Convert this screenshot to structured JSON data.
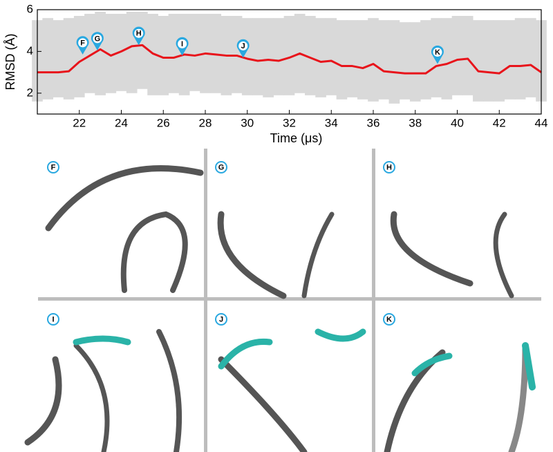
{
  "chart_data": {
    "type": "line",
    "ylabel": "RMSD (Å)",
    "xlabel": "Time (μs)",
    "xlim": [
      20,
      44
    ],
    "ylim": [
      1,
      6
    ],
    "xticks": [
      22,
      24,
      26,
      28,
      30,
      32,
      34,
      36,
      38,
      40,
      42,
      44
    ],
    "yticks": [
      2,
      4,
      6
    ],
    "x": [
      20,
      20.5,
      21,
      21.5,
      22,
      22.5,
      23,
      23.5,
      24,
      24.5,
      25,
      25.5,
      26,
      26.5,
      27,
      27.5,
      28,
      28.5,
      29,
      29.5,
      30,
      30.5,
      31,
      31.5,
      32,
      32.5,
      33,
      33.5,
      34,
      34.5,
      35,
      35.5,
      36,
      36.5,
      37,
      37.5,
      38,
      38.5,
      39,
      39.5,
      40,
      40.5,
      41,
      41.5,
      42,
      42.5,
      43,
      43.5,
      44
    ],
    "values": [
      3.0,
      3.0,
      3.0,
      3.05,
      3.5,
      3.8,
      4.1,
      3.8,
      4.0,
      4.25,
      4.3,
      3.9,
      3.7,
      3.7,
      3.85,
      3.8,
      3.9,
      3.85,
      3.8,
      3.8,
      3.65,
      3.55,
      3.6,
      3.55,
      3.7,
      3.9,
      3.7,
      3.5,
      3.55,
      3.3,
      3.3,
      3.2,
      3.4,
      3.05,
      3.0,
      2.95,
      2.95,
      2.95,
      3.3,
      3.4,
      3.6,
      3.65,
      3.05,
      3.0,
      2.95,
      3.3,
      3.3,
      3.35,
      3.0
    ],
    "color": "#e8141b",
    "band": {
      "color": "#d9d9d9",
      "low": [
        1.6,
        1.7,
        1.8,
        1.7,
        1.8,
        2.0,
        1.9,
        2.0,
        2.1,
        2.0,
        2.2,
        1.9,
        1.9,
        2.0,
        1.9,
        2.1,
        2.0,
        2.0,
        1.9,
        2.0,
        1.9,
        1.9,
        1.8,
        1.9,
        1.9,
        2.0,
        1.9,
        1.8,
        1.9,
        1.7,
        1.8,
        1.7,
        1.6,
        1.7,
        1.5,
        1.7,
        1.6,
        1.7,
        1.8,
        1.7,
        1.9,
        1.9,
        1.6,
        1.6,
        1.6,
        1.7,
        1.7,
        1.8,
        1.6
      ],
      "high": [
        5.5,
        5.6,
        5.5,
        5.6,
        5.7,
        5.8,
        5.9,
        5.8,
        5.8,
        5.9,
        5.9,
        5.8,
        5.7,
        5.8,
        5.8,
        5.8,
        5.8,
        5.8,
        5.7,
        5.7,
        5.6,
        5.6,
        5.6,
        5.6,
        5.7,
        5.8,
        5.7,
        5.6,
        5.6,
        5.5,
        5.5,
        5.5,
        5.6,
        5.5,
        5.5,
        5.4,
        5.4,
        5.5,
        5.6,
        5.6,
        5.7,
        5.7,
        5.5,
        5.5,
        5.5,
        5.5,
        5.6,
        5.6,
        5.5
      ]
    },
    "annotations": [
      {
        "label": "F",
        "x": 22.16,
        "y": 3.85
      },
      {
        "label": "G",
        "x": 22.86,
        "y": 4.05
      },
      {
        "label": "H",
        "x": 24.83,
        "y": 4.3
      },
      {
        "label": "I",
        "x": 26.9,
        "y": 3.8
      },
      {
        "label": "J",
        "x": 29.8,
        "y": 3.7
      },
      {
        "label": "K",
        "x": 39.06,
        "y": 3.4
      }
    ]
  },
  "panels": [
    "F",
    "G",
    "H",
    "I",
    "J",
    "K"
  ]
}
